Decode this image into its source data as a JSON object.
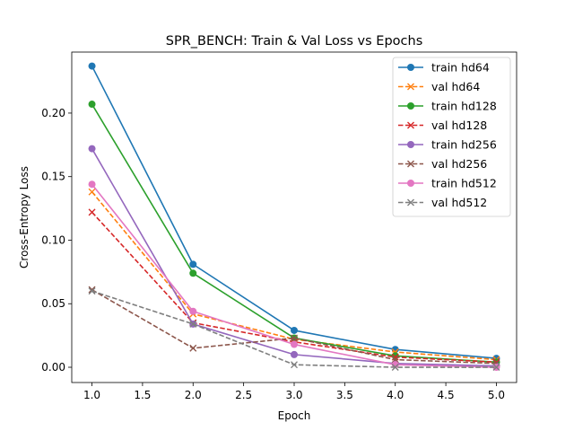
{
  "chart_data": {
    "type": "line",
    "title": "SPR_BENCH: Train & Val Loss vs Epochs",
    "xlabel": "Epoch",
    "ylabel": "Cross-Entropy Loss",
    "xlim": [
      0.8,
      5.2
    ],
    "ylim": [
      -0.012,
      0.248
    ],
    "xticks": [
      1.0,
      1.5,
      2.0,
      2.5,
      3.0,
      3.5,
      4.0,
      4.5,
      5.0
    ],
    "xtick_labels": [
      "1.0",
      "1.5",
      "2.0",
      "2.5",
      "3.0",
      "3.5",
      "4.0",
      "4.5",
      "5.0"
    ],
    "yticks": [
      0.0,
      0.05,
      0.1,
      0.15,
      0.2
    ],
    "ytick_labels": [
      "0.00",
      "0.05",
      "0.10",
      "0.15",
      "0.20"
    ],
    "grid": false,
    "legend_position": "top-right",
    "x": [
      1,
      2,
      3,
      4,
      5
    ],
    "series": [
      {
        "name": "train hd64",
        "values": [
          0.237,
          0.081,
          0.029,
          0.014,
          0.007
        ],
        "color": "#1f77b4",
        "dashed": false,
        "marker": "circle"
      },
      {
        "name": "val hd64",
        "values": [
          0.138,
          0.042,
          0.022,
          0.012,
          0.006
        ],
        "color": "#ff7f0e",
        "dashed": true,
        "marker": "x"
      },
      {
        "name": "train hd128",
        "values": [
          0.207,
          0.074,
          0.023,
          0.009,
          0.004
        ],
        "color": "#2ca02c",
        "dashed": false,
        "marker": "circle"
      },
      {
        "name": "val hd128",
        "values": [
          0.122,
          0.035,
          0.02,
          0.008,
          0.004
        ],
        "color": "#d62728",
        "dashed": true,
        "marker": "x"
      },
      {
        "name": "train hd256",
        "values": [
          0.172,
          0.034,
          0.01,
          0.003,
          0.001
        ],
        "color": "#9467bd",
        "dashed": false,
        "marker": "circle"
      },
      {
        "name": "val hd256",
        "values": [
          0.061,
          0.015,
          0.023,
          0.006,
          0.003
        ],
        "color": "#8c564b",
        "dashed": true,
        "marker": "x"
      },
      {
        "name": "train hd512",
        "values": [
          0.144,
          0.044,
          0.018,
          0.002,
          0.0
        ],
        "color": "#e377c2",
        "dashed": false,
        "marker": "circle"
      },
      {
        "name": "val hd512",
        "values": [
          0.06,
          0.034,
          0.002,
          0.0,
          0.0
        ],
        "color": "#7f7f7f",
        "dashed": true,
        "marker": "x"
      }
    ]
  }
}
